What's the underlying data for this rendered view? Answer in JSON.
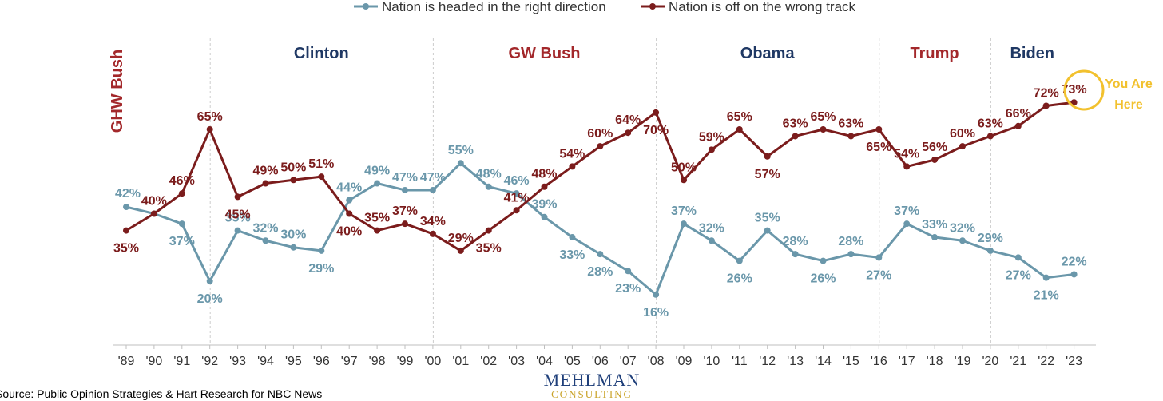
{
  "colors": {
    "right_direction": "#6a97aa",
    "wrong_track": "#7b1c1c",
    "democrat": "#1f3864",
    "republican": "#a3282b",
    "highlight": "#f2c12e",
    "logo_main": "#1f3f7a",
    "logo_sub": "#c9a227"
  },
  "legend": {
    "right": "Nation is headed in the right direction",
    "wrong": "Nation is off on the wrong track"
  },
  "presidents": [
    {
      "name": "GHW Bush",
      "party": "republican",
      "start": "'89",
      "end": "'92",
      "vertical": true
    },
    {
      "name": "Clinton",
      "party": "democrat",
      "start": "'92",
      "end": "'00"
    },
    {
      "name": "GW Bush",
      "party": "republican",
      "start": "'00",
      "end": "'08"
    },
    {
      "name": "Obama",
      "party": "democrat",
      "start": "'08",
      "end": "'16"
    },
    {
      "name": "Trump",
      "party": "republican",
      "start": "'16",
      "end": "'20"
    },
    {
      "name": "Biden",
      "party": "democrat",
      "start": "'20",
      "end": "'23"
    }
  ],
  "annotation": {
    "line1": "You Are",
    "line2": "Here"
  },
  "source": "Source: Public Opinion Strategies & Hart Research for NBC News",
  "logo": {
    "main": "MEHLMAN",
    "sub": "CONSULTING"
  },
  "chart_data": {
    "type": "line",
    "x": [
      "'89",
      "'90",
      "'91",
      "'92",
      "'93",
      "'94",
      "'95",
      "'96",
      "'97",
      "'98",
      "'99",
      "'00",
      "'01",
      "'02",
      "'03",
      "'04",
      "'05",
      "'06",
      "'07",
      "'08",
      "'09",
      "'10",
      "'11",
      "'12",
      "'13",
      "'14",
      "'15",
      "'16",
      "'17",
      "'18",
      "'19",
      "'20",
      "'21",
      "'22",
      "'23"
    ],
    "series": [
      {
        "name": "Nation is headed in the right direction",
        "values": [
          42,
          40,
          37,
          20,
          35,
          32,
          30,
          29,
          44,
          49,
          47,
          47,
          55,
          48,
          46,
          39,
          33,
          28,
          23,
          16,
          37,
          32,
          26,
          35,
          28,
          26,
          28,
          27,
          37,
          33,
          32,
          29,
          27,
          21,
          22
        ],
        "labels": [
          "42%",
          "",
          "37%",
          "20%",
          "35%",
          "32%",
          "30%",
          "29%",
          "44%",
          "49%",
          "47%",
          "47%",
          "55%",
          "48%",
          "46%",
          "39%",
          "33%",
          "28%",
          "23%",
          "16%",
          "37%",
          "32%",
          "26%",
          "35%",
          "28%",
          "26%",
          "28%",
          "27%",
          "37%",
          "33%",
          "32%",
          "29%",
          "27%",
          "21%",
          "22%"
        ]
      },
      {
        "name": "Nation is off on the wrong track",
        "values": [
          35,
          40,
          46,
          65,
          45,
          49,
          50,
          51,
          40,
          35,
          37,
          34,
          29,
          35,
          41,
          48,
          54,
          60,
          64,
          70,
          50,
          59,
          65,
          57,
          63,
          65,
          63,
          65,
          54,
          56,
          60,
          63,
          66,
          72,
          73
        ],
        "labels": [
          "35%",
          "40%",
          "46%",
          "65%",
          "45%",
          "49%",
          "50%",
          "51%",
          "40%",
          "35%",
          "37%",
          "34%",
          "29%",
          "35%",
          "41%",
          "48%",
          "54%",
          "60%",
          "64%",
          "70%",
          "50%",
          "59%",
          "65%",
          "57%",
          "63%",
          "65%",
          "63%",
          "65%",
          "54%",
          "56%",
          "60%",
          "63%",
          "66%",
          "72%",
          "73%"
        ]
      }
    ],
    "title": "",
    "xlabel": "",
    "ylabel": "",
    "grid": false,
    "legend": "top-center"
  }
}
